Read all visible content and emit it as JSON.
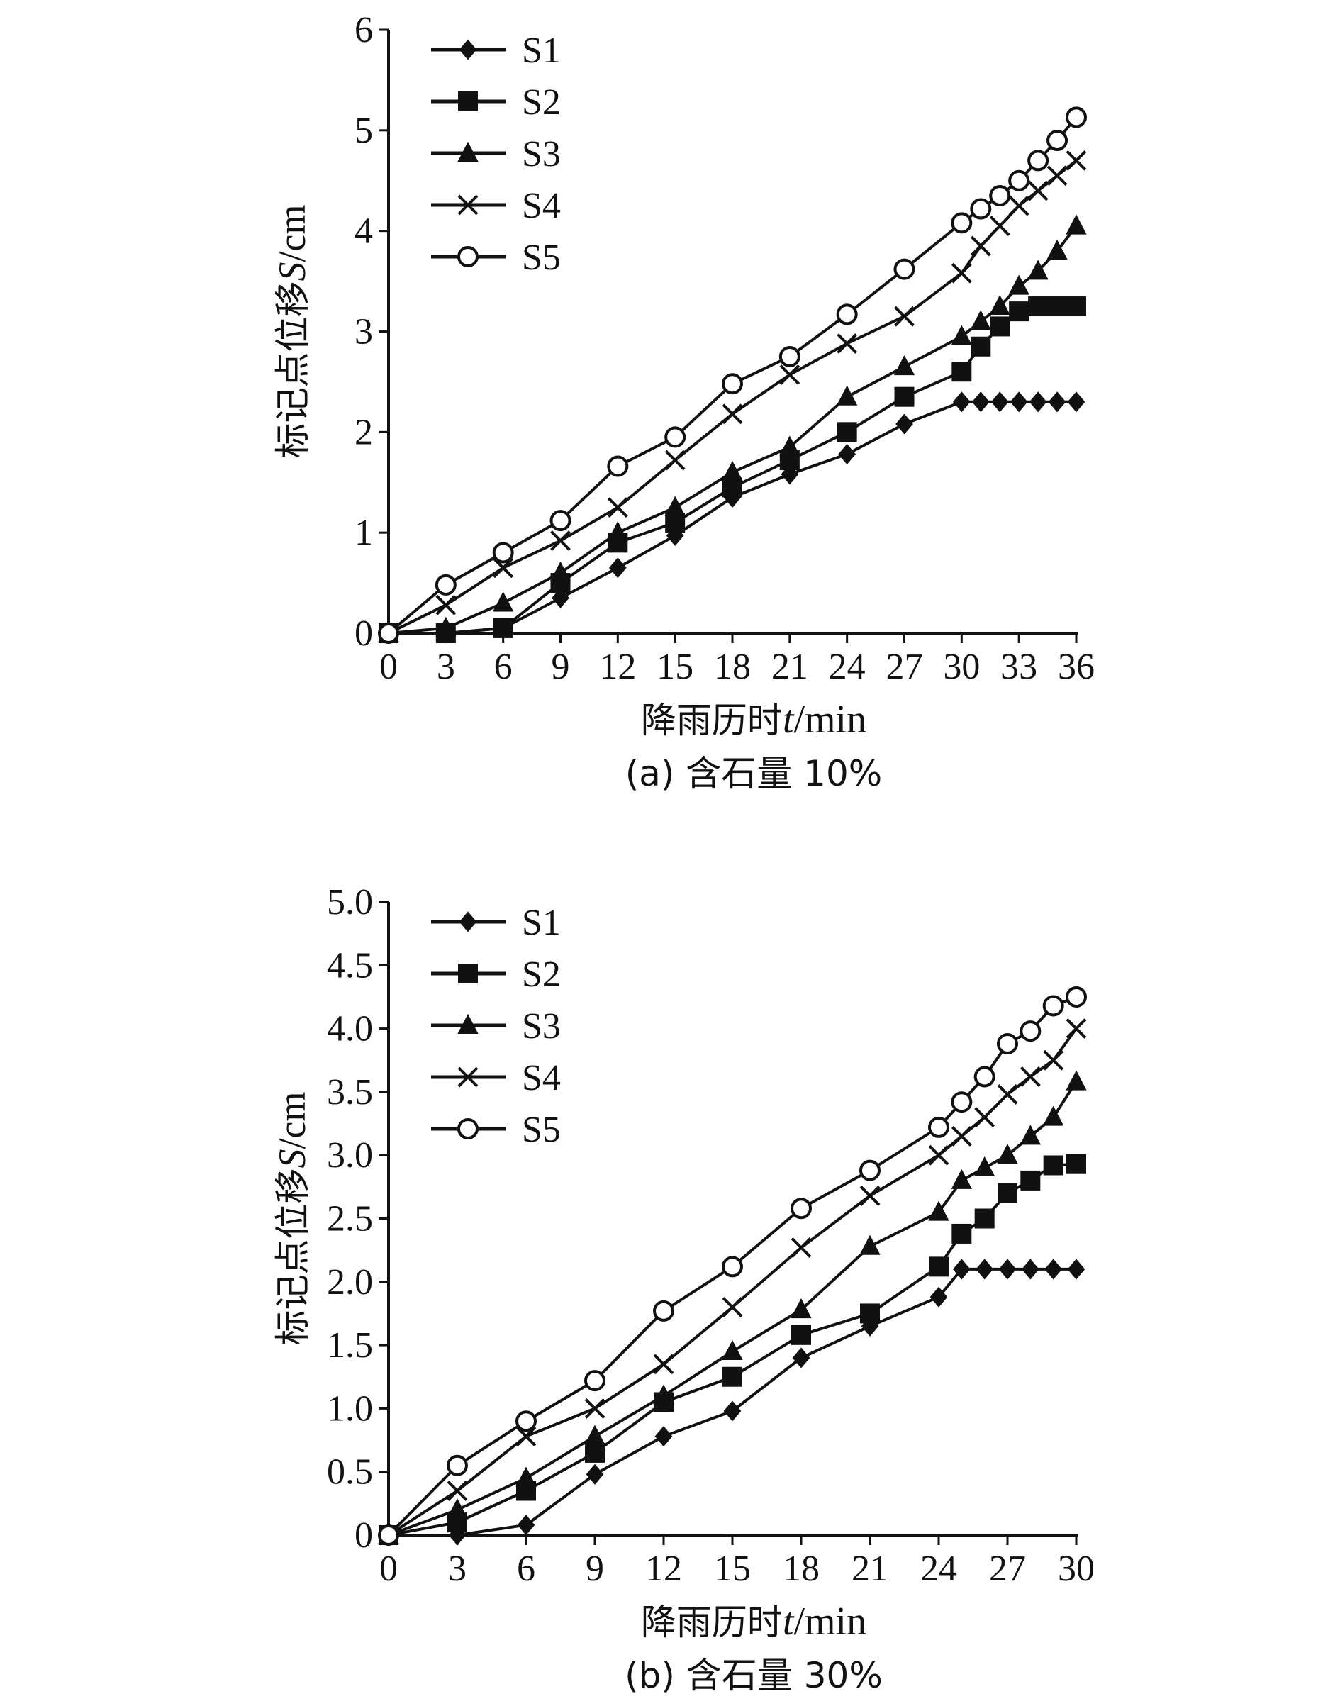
{
  "figure": {
    "colors": {
      "line": "#111111",
      "marker_fill": "#111111",
      "open_marker_fill": "#ffffff",
      "background": "#ffffff"
    }
  },
  "chart_data": [
    {
      "type": "line",
      "caption": "(a) 含石量 10%",
      "xlabel_text": "降雨历时",
      "xlabel_var": "t",
      "xlabel_unit": "/min",
      "ylabel_text": "标记点位移",
      "ylabel_var": "S",
      "ylabel_unit": "/cm",
      "xlim": [
        0,
        36
      ],
      "ylim": [
        0,
        6
      ],
      "xticks": [
        0,
        3,
        6,
        9,
        12,
        15,
        18,
        21,
        24,
        27,
        30,
        33,
        36
      ],
      "yticks": [
        0,
        1,
        2,
        3,
        4,
        5,
        6
      ],
      "ytick_labels": [
        "0",
        "1",
        "2",
        "3",
        "4",
        "5",
        "6"
      ],
      "legend_position": "top-left",
      "grid": false,
      "series": [
        {
          "name": "S1",
          "marker": "diamond",
          "x": [
            0,
            3,
            6,
            9,
            12,
            15,
            18,
            21,
            24,
            27,
            30,
            31,
            32,
            33,
            34,
            35,
            36
          ],
          "y": [
            0,
            0,
            0.05,
            0.35,
            0.65,
            0.97,
            1.35,
            1.58,
            1.78,
            2.08,
            2.3,
            2.3,
            2.3,
            2.3,
            2.3,
            2.3,
            2.3
          ]
        },
        {
          "name": "S2",
          "marker": "square",
          "x": [
            0,
            3,
            6,
            9,
            12,
            15,
            18,
            21,
            24,
            27,
            30,
            31,
            32,
            33,
            34,
            35,
            36
          ],
          "y": [
            0,
            0,
            0.05,
            0.5,
            0.9,
            1.1,
            1.45,
            1.72,
            2.0,
            2.35,
            2.6,
            2.85,
            3.05,
            3.2,
            3.25,
            3.25,
            3.25
          ]
        },
        {
          "name": "S3",
          "marker": "triangle",
          "x": [
            0,
            3,
            6,
            9,
            12,
            15,
            18,
            21,
            24,
            27,
            30,
            31,
            32,
            33,
            34,
            35,
            36
          ],
          "y": [
            0,
            0.05,
            0.3,
            0.6,
            1.0,
            1.25,
            1.6,
            1.85,
            2.35,
            2.65,
            2.95,
            3.1,
            3.25,
            3.45,
            3.6,
            3.8,
            4.05
          ]
        },
        {
          "name": "S4",
          "marker": "cross",
          "x": [
            0,
            3,
            6,
            9,
            12,
            15,
            18,
            21,
            24,
            27,
            30,
            31,
            32,
            33,
            34,
            35,
            36
          ],
          "y": [
            0,
            0.28,
            0.65,
            0.92,
            1.25,
            1.72,
            2.18,
            2.57,
            2.88,
            3.15,
            3.58,
            3.85,
            4.05,
            4.25,
            4.4,
            4.55,
            4.7
          ]
        },
        {
          "name": "S5",
          "marker": "circle",
          "x": [
            0,
            3,
            6,
            9,
            12,
            15,
            18,
            21,
            24,
            27,
            30,
            31,
            32,
            33,
            34,
            35,
            36
          ],
          "y": [
            0,
            0.48,
            0.8,
            1.12,
            1.66,
            1.95,
            2.48,
            2.75,
            3.17,
            3.62,
            4.08,
            4.22,
            4.35,
            4.5,
            4.7,
            4.9,
            5.13
          ]
        }
      ]
    },
    {
      "type": "line",
      "caption": "(b) 含石量 30%",
      "xlabel_text": "降雨历时",
      "xlabel_var": "t",
      "xlabel_unit": "/min",
      "ylabel_text": "标记点位移",
      "ylabel_var": "S",
      "ylabel_unit": "/cm",
      "xlim": [
        0,
        30
      ],
      "ylim": [
        0,
        5
      ],
      "xticks": [
        0,
        3,
        6,
        9,
        12,
        15,
        18,
        21,
        24,
        27,
        30
      ],
      "yticks": [
        0,
        0.5,
        1.0,
        1.5,
        2.0,
        2.5,
        3.0,
        3.5,
        4.0,
        4.5,
        5.0
      ],
      "ytick_labels": [
        "0",
        "0.5",
        "1.0",
        "1.5",
        "2.0",
        "2.5",
        "3.0",
        "3.5",
        "4.0",
        "4.5",
        "5.0"
      ],
      "legend_position": "top-left",
      "grid": false,
      "series": [
        {
          "name": "S1",
          "marker": "diamond",
          "x": [
            0,
            3,
            6,
            9,
            12,
            15,
            18,
            21,
            24,
            25,
            26,
            27,
            28,
            29,
            30
          ],
          "y": [
            0,
            0,
            0.08,
            0.48,
            0.78,
            0.98,
            1.4,
            1.65,
            1.88,
            2.1,
            2.1,
            2.1,
            2.1,
            2.1,
            2.1
          ]
        },
        {
          "name": "S2",
          "marker": "square",
          "x": [
            0,
            3,
            6,
            9,
            12,
            15,
            18,
            21,
            24,
            25,
            26,
            27,
            28,
            29,
            30
          ],
          "y": [
            0,
            0.1,
            0.35,
            0.65,
            1.05,
            1.25,
            1.58,
            1.75,
            2.12,
            2.38,
            2.5,
            2.7,
            2.8,
            2.92,
            2.93
          ]
        },
        {
          "name": "S3",
          "marker": "triangle",
          "x": [
            0,
            3,
            6,
            9,
            12,
            15,
            18,
            21,
            24,
            25,
            26,
            27,
            28,
            29,
            30
          ],
          "y": [
            0,
            0.2,
            0.45,
            0.78,
            1.1,
            1.45,
            1.78,
            2.28,
            2.55,
            2.8,
            2.9,
            3.0,
            3.15,
            3.3,
            3.58
          ]
        },
        {
          "name": "S4",
          "marker": "cross",
          "x": [
            0,
            3,
            6,
            9,
            12,
            15,
            18,
            21,
            24,
            25,
            26,
            27,
            28,
            29,
            30
          ],
          "y": [
            0,
            0.35,
            0.78,
            1.0,
            1.35,
            1.8,
            2.27,
            2.68,
            3.0,
            3.15,
            3.3,
            3.48,
            3.62,
            3.75,
            4.0
          ]
        },
        {
          "name": "S5",
          "marker": "circle",
          "x": [
            0,
            3,
            6,
            9,
            12,
            15,
            18,
            21,
            24,
            25,
            26,
            27,
            28,
            29,
            30
          ],
          "y": [
            0,
            0.55,
            0.9,
            1.22,
            1.77,
            2.12,
            2.58,
            2.88,
            3.22,
            3.42,
            3.62,
            3.88,
            3.98,
            4.18,
            4.25
          ]
        }
      ]
    }
  ]
}
